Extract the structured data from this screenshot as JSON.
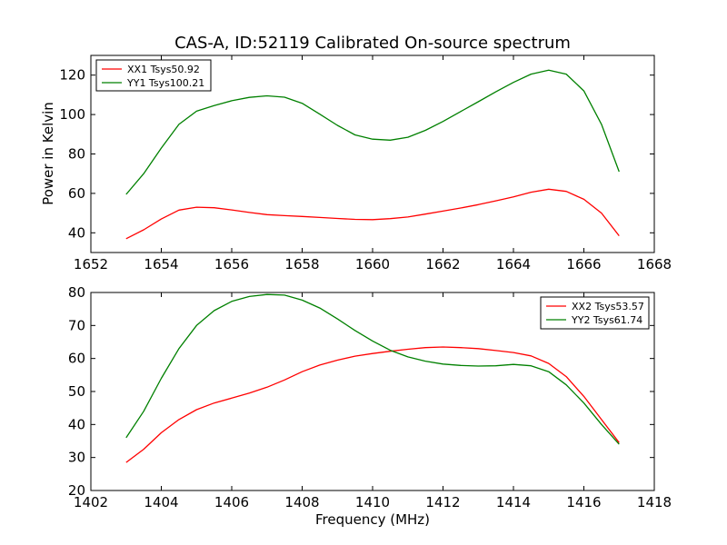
{
  "chart_data": [
    {
      "type": "line",
      "title": "CAS-A, ID:52119 Calibrated On-source spectrum",
      "xlabel": "",
      "ylabel": "Power in Kelvin",
      "xlim": [
        1652,
        1668
      ],
      "ylim": [
        30,
        130
      ],
      "xticks": [
        1652,
        1654,
        1656,
        1658,
        1660,
        1662,
        1664,
        1666,
        1668
      ],
      "yticks": [
        40,
        60,
        80,
        100,
        120
      ],
      "grid": false,
      "legend_position": "top-left",
      "series": [
        {
          "name": "XX1 Tsys50.92",
          "color": "#ff0000",
          "points": [
            [
              1653.0,
              37.0
            ],
            [
              1653.5,
              41.5
            ],
            [
              1654.0,
              47.0
            ],
            [
              1654.5,
              51.5
            ],
            [
              1655.0,
              53.0
            ],
            [
              1655.5,
              52.7
            ],
            [
              1656.0,
              51.6
            ],
            [
              1656.5,
              50.3
            ],
            [
              1657.0,
              49.2
            ],
            [
              1657.5,
              48.7
            ],
            [
              1658.0,
              48.3
            ],
            [
              1658.5,
              47.8
            ],
            [
              1659.0,
              47.3
            ],
            [
              1659.5,
              46.8
            ],
            [
              1660.0,
              46.7
            ],
            [
              1660.5,
              47.2
            ],
            [
              1661.0,
              48.0
            ],
            [
              1661.5,
              49.5
            ],
            [
              1662.0,
              51.0
            ],
            [
              1662.5,
              52.6
            ],
            [
              1663.0,
              54.3
            ],
            [
              1663.5,
              56.2
            ],
            [
              1664.0,
              58.2
            ],
            [
              1664.5,
              60.6
            ],
            [
              1665.0,
              62.1
            ],
            [
              1665.5,
              61.0
            ],
            [
              1666.0,
              57.0
            ],
            [
              1666.5,
              50.0
            ],
            [
              1667.0,
              38.5
            ]
          ]
        },
        {
          "name": "YY1 Tsys100.21",
          "color": "#008000",
          "points": [
            [
              1653.0,
              59.5
            ],
            [
              1653.5,
              70.0
            ],
            [
              1654.0,
              83.0
            ],
            [
              1654.5,
              95.0
            ],
            [
              1655.0,
              101.7
            ],
            [
              1655.5,
              104.5
            ],
            [
              1656.0,
              107.0
            ],
            [
              1656.5,
              108.7
            ],
            [
              1657.0,
              109.5
            ],
            [
              1657.5,
              108.8
            ],
            [
              1658.0,
              105.7
            ],
            [
              1658.5,
              100.2
            ],
            [
              1659.0,
              94.5
            ],
            [
              1659.5,
              89.7
            ],
            [
              1660.0,
              87.5
            ],
            [
              1660.5,
              87.0
            ],
            [
              1661.0,
              88.5
            ],
            [
              1661.5,
              92.0
            ],
            [
              1662.0,
              96.5
            ],
            [
              1662.5,
              101.5
            ],
            [
              1663.0,
              106.5
            ],
            [
              1663.5,
              111.5
            ],
            [
              1664.0,
              116.3
            ],
            [
              1664.5,
              120.5
            ],
            [
              1665.0,
              122.5
            ],
            [
              1665.5,
              120.5
            ],
            [
              1666.0,
              112.0
            ],
            [
              1666.5,
              95.0
            ],
            [
              1667.0,
              71.0
            ]
          ]
        }
      ]
    },
    {
      "type": "line",
      "title": "",
      "xlabel": "Frequency (MHz)",
      "ylabel": "",
      "xlim": [
        1402,
        1418
      ],
      "ylim": [
        20,
        80
      ],
      "xticks": [
        1402,
        1404,
        1406,
        1408,
        1410,
        1412,
        1414,
        1416,
        1418
      ],
      "yticks": [
        20,
        30,
        40,
        50,
        60,
        70,
        80
      ],
      "grid": false,
      "legend_position": "top-right",
      "series": [
        {
          "name": "XX2 Tsys53.57",
          "color": "#ff0000",
          "points": [
            [
              1403.0,
              28.5
            ],
            [
              1403.5,
              32.5
            ],
            [
              1404.0,
              37.5
            ],
            [
              1404.5,
              41.5
            ],
            [
              1405.0,
              44.5
            ],
            [
              1405.5,
              46.5
            ],
            [
              1406.0,
              48.0
            ],
            [
              1406.5,
              49.5
            ],
            [
              1407.0,
              51.3
            ],
            [
              1407.5,
              53.5
            ],
            [
              1408.0,
              56.0
            ],
            [
              1408.5,
              58.0
            ],
            [
              1409.0,
              59.5
            ],
            [
              1409.5,
              60.7
            ],
            [
              1410.0,
              61.5
            ],
            [
              1410.5,
              62.2
            ],
            [
              1411.0,
              62.8
            ],
            [
              1411.5,
              63.3
            ],
            [
              1412.0,
              63.5
            ],
            [
              1412.5,
              63.3
            ],
            [
              1413.0,
              63.0
            ],
            [
              1413.5,
              62.4
            ],
            [
              1414.0,
              61.8
            ],
            [
              1414.5,
              60.8
            ],
            [
              1415.0,
              58.5
            ],
            [
              1415.5,
              54.5
            ],
            [
              1416.0,
              48.5
            ],
            [
              1416.5,
              41.5
            ],
            [
              1417.0,
              34.5
            ]
          ]
        },
        {
          "name": "YY2 Tsys61.74",
          "color": "#008000",
          "points": [
            [
              1403.0,
              36.0
            ],
            [
              1403.5,
              44.0
            ],
            [
              1404.0,
              54.0
            ],
            [
              1404.5,
              63.0
            ],
            [
              1405.0,
              70.0
            ],
            [
              1405.5,
              74.5
            ],
            [
              1406.0,
              77.3
            ],
            [
              1406.5,
              78.8
            ],
            [
              1407.0,
              79.4
            ],
            [
              1407.5,
              79.2
            ],
            [
              1408.0,
              77.7
            ],
            [
              1408.5,
              75.3
            ],
            [
              1409.0,
              72.0
            ],
            [
              1409.5,
              68.5
            ],
            [
              1410.0,
              65.3
            ],
            [
              1410.5,
              62.5
            ],
            [
              1411.0,
              60.5
            ],
            [
              1411.5,
              59.2
            ],
            [
              1412.0,
              58.3
            ],
            [
              1412.5,
              57.9
            ],
            [
              1413.0,
              57.7
            ],
            [
              1413.5,
              57.8
            ],
            [
              1414.0,
              58.2
            ],
            [
              1414.5,
              57.8
            ],
            [
              1415.0,
              56.0
            ],
            [
              1415.5,
              52.0
            ],
            [
              1416.0,
              46.5
            ],
            [
              1416.5,
              40.0
            ],
            [
              1417.0,
              34.0
            ]
          ]
        }
      ]
    }
  ]
}
